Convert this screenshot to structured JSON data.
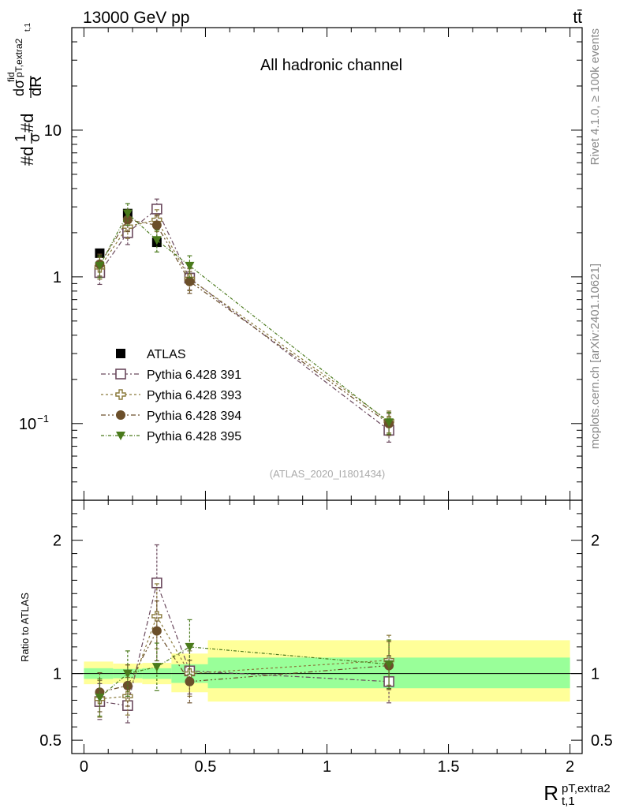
{
  "header": {
    "energy_label": "13000 GeV pp",
    "process_label": "tt̄",
    "channel_label": "All hadronic channel",
    "analysis_id": "(ATLAS_2020_I1801434)",
    "side_rivet": "Rivet 4.1.0, ≥ 100k events",
    "side_site": "mcplots.cern.ch [arXiv:2401.10621]"
  },
  "chart_data": [
    {
      "type": "scatter",
      "panel": "main",
      "title": "All hadronic channel",
      "ylabel": "#d1/σ#dσ^fid/dR^{pT,extra2}_{t,1}",
      "yscale": "log",
      "ylim": [
        0.03,
        50
      ],
      "xlim": [
        -0.05,
        2.05
      ],
      "ytick_labels": [
        "10^-1",
        "1",
        "10"
      ],
      "x": [
        0.065,
        0.18,
        0.3,
        0.435,
        1.255
      ],
      "xerr": [
        0.065,
        0.06,
        0.06,
        0.075,
        0.745
      ],
      "series": [
        {
          "name": "ATLAS",
          "color": "#000000",
          "marker": "filled-square",
          "values": [
            1.45,
            2.7,
            1.72,
            0.99,
            0.095
          ]
        },
        {
          "name": "Pythia 6.428 391",
          "color": "#6b4a5e",
          "marker": "open-square",
          "values": [
            1.07,
            2.0,
            2.9,
            0.98,
            0.09
          ]
        },
        {
          "name": "Pythia 6.428 393",
          "color": "#8a7a3c",
          "marker": "open-cross",
          "values": [
            1.16,
            2.2,
            2.45,
            0.97,
            0.104
          ]
        },
        {
          "name": "Pythia 6.428 394",
          "color": "#6b4f2a",
          "marker": "filled-circle",
          "values": [
            1.22,
            2.45,
            2.25,
            0.93,
            0.1
          ]
        },
        {
          "name": "Pythia 6.428 395",
          "color": "#4a7a1c",
          "marker": "filled-triangle-down",
          "values": [
            1.19,
            2.7,
            1.78,
            1.19,
            0.102
          ]
        }
      ]
    },
    {
      "type": "scatter",
      "panel": "ratio",
      "ylabel": "Ratio to ATLAS",
      "ylim": [
        0.4,
        2.3
      ],
      "xlim": [
        -0.05,
        2.05
      ],
      "xlabel": "R^{pT,extra2}_{t,1}",
      "xtick_labels": [
        "0",
        "0.5",
        "1",
        "1.5",
        "2"
      ],
      "ytick_labels": [
        "0.5",
        "1",
        "2"
      ],
      "x": [
        0.065,
        0.18,
        0.3,
        0.435,
        1.255
      ],
      "bands": [
        {
          "xlo": 0.0,
          "xhi": 0.12,
          "inner": [
            0.96,
            1.04
          ],
          "outer": [
            0.92,
            1.09
          ]
        },
        {
          "xlo": 0.12,
          "xhi": 0.24,
          "inner": [
            0.965,
            1.035
          ],
          "outer": [
            0.93,
            1.075
          ]
        },
        {
          "xlo": 0.24,
          "xhi": 0.36,
          "inner": [
            0.96,
            1.04
          ],
          "outer": [
            0.92,
            1.08
          ]
        },
        {
          "xlo": 0.36,
          "xhi": 0.51,
          "inner": [
            0.93,
            1.07
          ],
          "outer": [
            0.86,
            1.15
          ]
        },
        {
          "xlo": 0.51,
          "xhi": 2.0,
          "inner": [
            0.89,
            1.12
          ],
          "outer": [
            0.79,
            1.25
          ]
        }
      ],
      "series": [
        {
          "name": "Pythia 6.428 391",
          "color": "#6b4a5e",
          "marker": "open-square",
          "values": [
            0.79,
            0.76,
            1.68,
            1.02,
            0.94
          ]
        },
        {
          "name": "Pythia 6.428 393",
          "color": "#8a7a3c",
          "marker": "open-cross",
          "values": [
            0.81,
            0.83,
            1.43,
            1.0,
            1.1
          ]
        },
        {
          "name": "Pythia 6.428 394",
          "color": "#6b4f2a",
          "marker": "filled-circle",
          "values": [
            0.86,
            0.91,
            1.32,
            0.94,
            1.06
          ]
        },
        {
          "name": "Pythia 6.428 395",
          "color": "#4a7a1c",
          "marker": "filled-triangle-down",
          "values": [
            0.82,
            1.0,
            1.05,
            1.2,
            1.07
          ]
        }
      ]
    }
  ]
}
